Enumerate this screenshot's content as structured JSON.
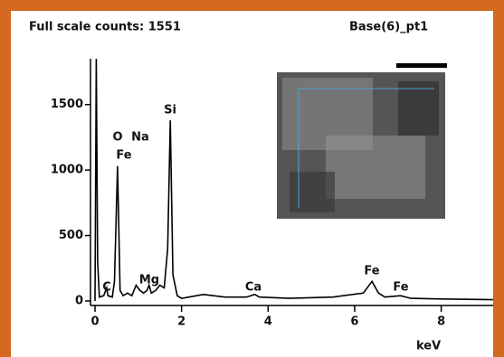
{
  "chart_data": {
    "type": "line",
    "header_left": "Full scale counts: 1551",
    "header_right": "Base(6)_pt1",
    "x_label": "keV",
    "xlim": [
      0,
      9.2
    ],
    "xticks": [
      0,
      2,
      4,
      6,
      8
    ],
    "ylim": [
      0,
      1850
    ],
    "yticks": [
      0,
      500,
      1000,
      1500
    ],
    "color": "#000000",
    "x": [
      0,
      0.03,
      0.06,
      0.1,
      0.2,
      0.27,
      0.3,
      0.4,
      0.45,
      0.52,
      0.58,
      0.65,
      0.75,
      0.85,
      0.95,
      1.04,
      1.12,
      1.2,
      1.25,
      1.3,
      1.4,
      1.5,
      1.6,
      1.68,
      1.74,
      1.8,
      1.9,
      2.0,
      2.5,
      3.0,
      3.5,
      3.69,
      3.8,
      4.5,
      5.5,
      6.2,
      6.4,
      6.55,
      6.7,
      7.06,
      7.3,
      8.0,
      9.2
    ],
    "values": [
      0,
      1850,
      300,
      30,
      40,
      100,
      40,
      30,
      150,
      1030,
      80,
      40,
      60,
      40,
      120,
      80,
      60,
      80,
      120,
      60,
      80,
      120,
      100,
      400,
      1380,
      200,
      40,
      20,
      50,
      30,
      30,
      50,
      30,
      20,
      30,
      60,
      150,
      60,
      30,
      40,
      20,
      15,
      10
    ],
    "annotations": [
      "C",
      "O",
      "Na",
      "Fe",
      "Mg",
      "Si",
      "Ca",
      "Fe",
      "Fe"
    ]
  }
}
